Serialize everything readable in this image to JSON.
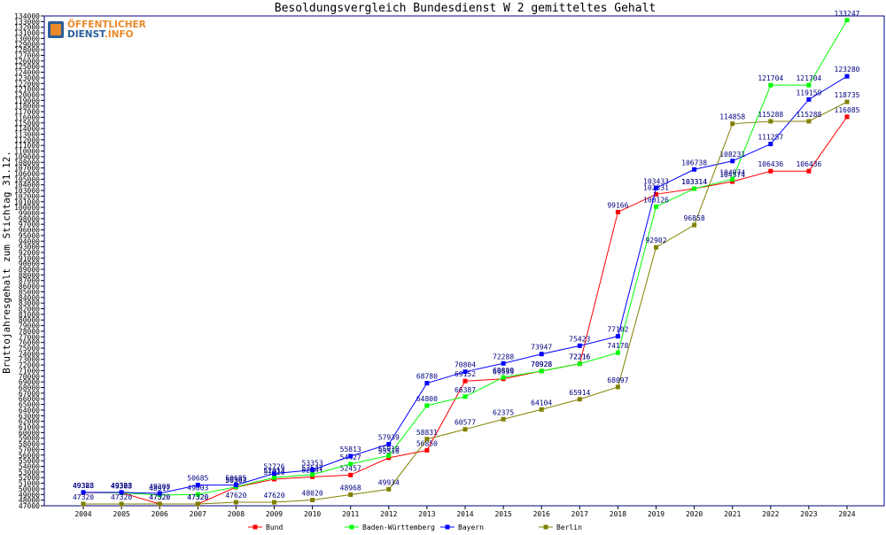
{
  "logo": {
    "line1": "ÖFFENTLICHER",
    "line2": "DIENST",
    "line2_tld": ".INFO"
  },
  "chart_data": {
    "type": "line",
    "title": "Besoldungsvergleich Bundesdienst W 2 gemitteltes Gehalt",
    "xlabel": "",
    "ylabel": "Bruttojahresgehalt zum Stichtag 31.12.",
    "categories": [
      "2004",
      "2005",
      "2006",
      "2007",
      "2008",
      "2009",
      "2010",
      "2011",
      "2012",
      "2013",
      "2014",
      "2015",
      "2016",
      "2017",
      "2018",
      "2019",
      "2020",
      "2021",
      "2022",
      "2023",
      "2024"
    ],
    "ylim": [
      47000,
      134000
    ],
    "ytick_step": 1000,
    "grid": false,
    "legend_position": "bottom",
    "series": [
      {
        "name": "Bund",
        "color": "#ff0000",
        "values": [
          49328,
          49328,
          47320,
          47320,
          50303,
          51720,
          52141,
          52457,
          55516,
          56850,
          69152,
          69539,
          70928,
          72216,
          99166,
          102331,
          103314,
          104574,
          106436,
          106436,
          116085
        ]
      },
      {
        "name": "Baden-Württemberg",
        "color": "#00ff00",
        "values": [
          49383,
          49303,
          48917,
          49003,
          50367,
          52017,
          52542,
          54427,
          55910,
          64800,
          66387,
          69809,
          70928,
          72216,
          74178,
          100126,
          103314,
          104974,
          121704,
          121704,
          133247
        ]
      },
      {
        "name": "Bayern",
        "color": "#0000ff",
        "values": [
          49383,
          49383,
          49208,
          50685,
          50685,
          52726,
          53353,
          55813,
          57939,
          68780,
          70804,
          72288,
          73947,
          75423,
          77102,
          103433,
          106738,
          108231,
          111257,
          119159,
          123280
        ]
      },
      {
        "name": "Berlin",
        "color": "#808000",
        "values": [
          47320,
          47320,
          47320,
          47320,
          47620,
          47620,
          48020,
          48968,
          49934,
          58831,
          60577,
          62375,
          64104,
          65914,
          68097,
          92902,
          96858,
          114858,
          115288,
          115288,
          118735
        ]
      }
    ]
  }
}
